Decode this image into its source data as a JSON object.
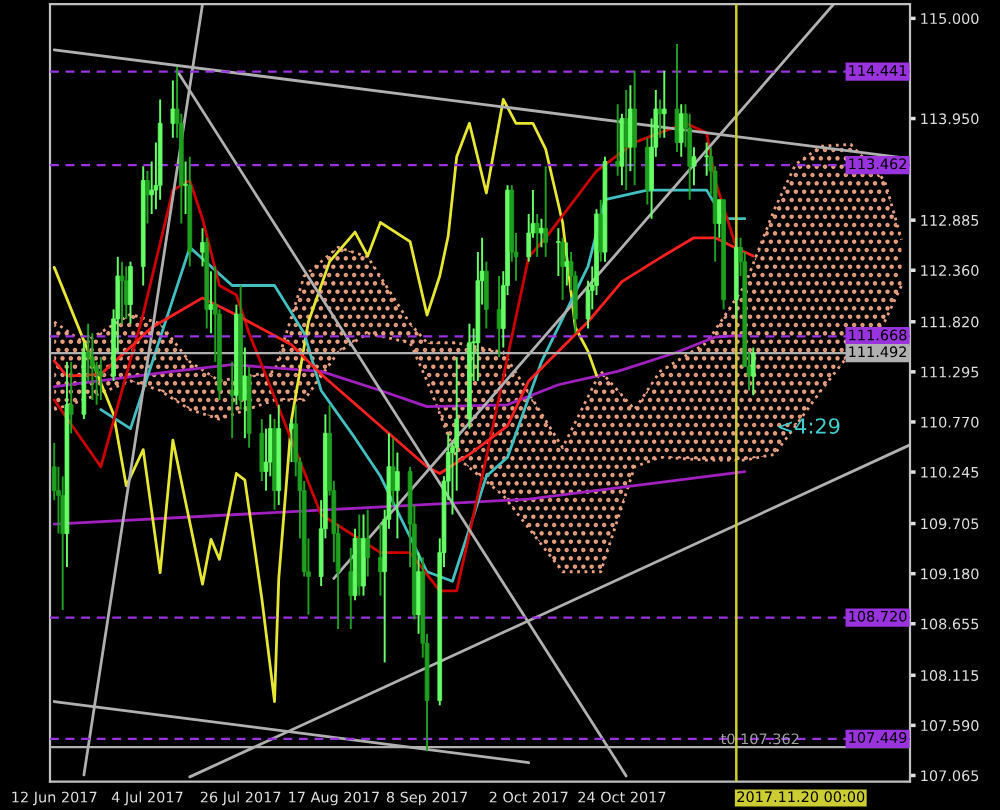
{
  "chart_data": {
    "type": "candlestick",
    "colors": [
      "#1f9f1f",
      "#1f9f1f",
      "#1f9f1f",
      "#66ff66",
      "#1f9f1f",
      "#66ff66",
      "#1f9f1f",
      "#1f9f1f",
      "#1f9f1f",
      "#1f9f1f",
      "#66ff66",
      "#66ff66",
      "#1f9f1f",
      "#1f9f1f",
      "#66ff66",
      "#66ff66",
      "#1f9f1f",
      "#66ff66",
      "#66ff66",
      "#66ff66",
      "#66ff66",
      "#1f9f1f",
      "#1f9f1f",
      "#66ff66",
      "#1f9f1f",
      "#66ff66",
      "#1f9f1f",
      "#66ff66",
      "#1f9f1f",
      "#1f9f1f",
      "#1f9f1f",
      "#66ff66",
      "#1f9f1f",
      "#66ff66",
      "#1f9f1f",
      "#1f9f1f",
      "#66ff66",
      "#66ff66",
      "#1f9f1f",
      "#66ff66",
      "#66ff66",
      "#1f9f1f",
      "#1f9f1f",
      "#1f9f1f",
      "#1f9f1f",
      "#66ff66",
      "#66ff66",
      "#1f9f1f",
      "#1f9f1f",
      "#1f9f1f",
      "#1f9f1f",
      "#66ff66",
      "#1f9f1f",
      "#66ff66",
      "#1f9f1f",
      "#1f9f1f",
      "#66ff66",
      "#66ff66",
      "#1f9f1f",
      "#66ff66",
      "#1f9f1f",
      "#1f9f1f",
      "#66ff66",
      "#1f9f1f",
      "#1f9f1f",
      "#66ff66",
      "#66ff66",
      "#66ff66",
      "#66ff66",
      "#66ff66",
      "#66ff66",
      "#66ff66",
      "#66ff66",
      "#66ff66",
      "#1f9f1f",
      "#1f9f1f",
      "#66ff66",
      "#66ff66",
      "#1f9f1f",
      "#1f9f1f",
      "#66ff66",
      "#66ff66",
      "#1f9f1f",
      "#66ff66",
      "#1f9f1f",
      "#66ff66",
      "#1f9f1f",
      "#66ff66",
      "#1f9f1f",
      "#1f9f1f",
      "#66ff66",
      "#66ff66",
      "#66ff66",
      "#1f9f1f",
      "#66ff66",
      "#1f9f1f",
      "#66ff66",
      "#1f9f1f",
      "#66ff66",
      "#1f9f1f",
      "#1f9f1f",
      "#66ff66",
      "#66ff66",
      "#1f9f1f",
      "#66ff66",
      "#1f9f1f",
      "#66ff66",
      "#1f9f1f",
      "#1f9f1f",
      "#66ff66",
      "#66ff66",
      "#1f9f1f",
      "#1f9f1f",
      "#66ff66",
      "#1f9f1f",
      "#66ff66",
      "#1f9f1f",
      "#1f9f1f",
      "#1f9f1f",
      "#66ff66"
    ],
    "x": [
      "2017-06-12",
      "2017-06-13",
      "2017-06-14",
      "2017-06-15",
      "2017-06-16",
      "2017-06-19",
      "2017-06-20",
      "2017-06-21",
      "2017-06-22",
      "2017-06-23",
      "2017-06-26",
      "2017-06-27",
      "2017-06-28",
      "2017-06-29",
      "2017-06-30",
      "2017-07-03",
      "2017-07-04",
      "2017-07-05",
      "2017-07-06",
      "2017-07-07",
      "2017-07-10",
      "2017-07-11",
      "2017-07-12",
      "2017-07-13",
      "2017-07-14",
      "2017-07-17",
      "2017-07-18",
      "2017-07-19",
      "2017-07-20",
      "2017-07-21",
      "2017-07-24",
      "2017-07-25",
      "2017-07-26",
      "2017-07-27",
      "2017-07-28",
      "2017-07-31",
      "2017-08-01",
      "2017-08-02",
      "2017-08-03",
      "2017-08-04",
      "2017-08-07",
      "2017-08-08",
      "2017-08-09",
      "2017-08-10",
      "2017-08-11",
      "2017-08-14",
      "2017-08-15",
      "2017-08-16",
      "2017-08-17",
      "2017-08-18",
      "2017-08-21",
      "2017-08-22",
      "2017-08-23",
      "2017-08-24",
      "2017-08-25",
      "2017-08-28",
      "2017-08-29",
      "2017-08-30",
      "2017-08-31",
      "2017-09-01",
      "2017-09-04",
      "2017-09-05",
      "2017-09-06",
      "2017-09-07",
      "2017-09-08",
      "2017-09-11",
      "2017-09-12",
      "2017-09-13",
      "2017-09-14",
      "2017-09-15",
      "2017-09-18",
      "2017-09-19",
      "2017-09-20",
      "2017-09-21",
      "2017-09-22",
      "2017-09-25",
      "2017-09-26",
      "2017-09-27",
      "2017-09-28",
      "2017-09-29",
      "2017-10-02",
      "2017-10-03",
      "2017-10-04",
      "2017-10-05",
      "2017-10-06",
      "2017-10-09",
      "2017-10-10",
      "2017-10-11",
      "2017-10-12",
      "2017-10-13",
      "2017-10-16",
      "2017-10-17",
      "2017-10-18",
      "2017-10-19",
      "2017-10-20",
      "2017-10-23",
      "2017-10-24",
      "2017-10-25",
      "2017-10-26",
      "2017-10-27",
      "2017-10-30",
      "2017-10-31",
      "2017-11-01",
      "2017-11-02",
      "2017-11-03",
      "2017-11-06",
      "2017-11-07",
      "2017-11-08",
      "2017-11-09",
      "2017-11-10",
      "2017-11-13",
      "2017-11-14",
      "2017-11-15",
      "2017-11-16",
      "2017-11-17",
      "2017-11-20",
      "2017-11-21",
      "2017-11-22",
      "2017-11-23",
      "2017-11-24"
    ],
    "ohlc": [
      [
        110.3,
        110.55,
        109.95,
        110.05
      ],
      [
        110.05,
        110.3,
        109.6,
        110.0
      ],
      [
        110.0,
        110.2,
        108.8,
        109.6
      ],
      [
        109.6,
        111.4,
        109.25,
        110.95
      ],
      [
        110.95,
        111.4,
        110.65,
        110.85
      ],
      [
        110.85,
        111.6,
        110.8,
        111.5
      ],
      [
        111.5,
        111.8,
        111.2,
        111.45
      ],
      [
        111.45,
        111.7,
        111.0,
        111.35
      ],
      [
        111.35,
        111.4,
        110.95,
        111.3
      ],
      [
        111.3,
        111.45,
        111.0,
        111.25
      ],
      [
        111.25,
        111.95,
        111.2,
        111.85
      ],
      [
        111.85,
        112.5,
        111.5,
        112.3
      ],
      [
        112.3,
        112.45,
        111.8,
        112.25
      ],
      [
        112.25,
        112.4,
        111.85,
        112.0
      ],
      [
        112.0,
        112.45,
        111.8,
        112.4
      ],
      [
        112.4,
        113.45,
        112.2,
        113.3
      ],
      [
        113.3,
        113.4,
        112.85,
        113.15
      ],
      [
        113.15,
        113.5,
        112.95,
        113.2
      ],
      [
        113.2,
        113.7,
        113.0,
        113.25
      ],
      [
        113.25,
        114.15,
        113.1,
        113.9
      ],
      [
        113.9,
        114.35,
        113.75,
        114.05
      ],
      [
        114.05,
        114.49,
        113.75,
        113.9
      ],
      [
        113.9,
        114.0,
        112.85,
        113.25
      ],
      [
        113.25,
        113.5,
        112.95,
        113.25
      ],
      [
        113.25,
        113.55,
        112.4,
        112.55
      ],
      [
        112.55,
        112.8,
        112.4,
        112.65
      ],
      [
        112.65,
        112.7,
        111.75,
        111.95
      ],
      [
        111.95,
        112.35,
        111.7,
        112.0
      ],
      [
        112.0,
        112.4,
        111.4,
        111.9
      ],
      [
        111.9,
        111.95,
        111.0,
        111.1
      ],
      [
        111.1,
        111.4,
        110.6,
        111.05
      ],
      [
        111.05,
        112.0,
        110.95,
        111.9
      ],
      [
        111.9,
        112.2,
        110.9,
        111.0
      ],
      [
        111.0,
        111.55,
        110.6,
        111.25
      ],
      [
        111.25,
        111.35,
        110.5,
        110.65
      ],
      [
        110.65,
        110.8,
        110.15,
        110.25
      ],
      [
        110.25,
        110.7,
        110.05,
        110.35
      ],
      [
        110.35,
        110.85,
        110.2,
        110.7
      ],
      [
        110.7,
        110.8,
        109.85,
        110.05
      ],
      [
        110.05,
        110.95,
        109.9,
        110.7
      ],
      [
        110.7,
        110.8,
        110.35,
        110.75
      ],
      [
        110.75,
        110.95,
        110.2,
        110.35
      ],
      [
        110.35,
        110.4,
        109.55,
        110.05
      ],
      [
        110.05,
        110.15,
        109.15,
        109.2
      ],
      [
        109.2,
        109.55,
        108.75,
        109.15
      ],
      [
        109.15,
        109.95,
        109.05,
        109.65
      ],
      [
        109.65,
        110.85,
        109.55,
        110.65
      ],
      [
        110.65,
        110.95,
        110.0,
        110.05
      ],
      [
        110.05,
        110.15,
        109.3,
        109.6
      ],
      [
        109.6,
        109.7,
        108.6,
        109.2
      ],
      [
        109.2,
        109.45,
        108.6,
        108.95
      ],
      [
        108.95,
        109.65,
        108.9,
        109.55
      ],
      [
        109.55,
        109.8,
        108.95,
        109.05
      ],
      [
        109.05,
        109.8,
        108.95,
        109.55
      ],
      [
        109.55,
        109.85,
        109.15,
        109.35
      ],
      [
        109.35,
        109.7,
        108.95,
        109.2
      ],
      [
        109.2,
        109.85,
        108.25,
        109.75
      ],
      [
        109.75,
        110.65,
        109.65,
        110.3
      ],
      [
        110.3,
        110.6,
        109.9,
        110.05
      ],
      [
        110.05,
        110.45,
        109.55,
        110.25
      ],
      [
        110.25,
        110.3,
        109.25,
        109.7
      ],
      [
        109.7,
        109.9,
        108.7,
        108.75
      ],
      [
        108.75,
        109.4,
        108.55,
        109.2
      ],
      [
        109.2,
        109.35,
        108.3,
        108.45
      ],
      [
        108.45,
        108.55,
        107.32,
        107.85
      ],
      [
        107.85,
        109.55,
        107.8,
        109.4
      ],
      [
        109.4,
        110.2,
        109.25,
        110.15
      ],
      [
        110.15,
        110.65,
        109.95,
        110.45
      ],
      [
        110.45,
        110.55,
        109.8,
        110.5
      ],
      [
        110.5,
        111.45,
        110.05,
        110.8
      ],
      [
        110.8,
        111.8,
        110.7,
        111.6
      ],
      [
        111.6,
        111.75,
        111.2,
        111.6
      ],
      [
        111.6,
        112.55,
        111.2,
        112.25
      ],
      [
        112.25,
        112.7,
        112.0,
        112.35
      ],
      [
        112.35,
        112.45,
        111.75,
        111.95
      ],
      [
        111.95,
        112.3,
        111.45,
        111.75
      ],
      [
        111.75,
        112.35,
        111.55,
        112.2
      ],
      [
        112.2,
        113.25,
        112.1,
        113.2
      ],
      [
        113.2,
        113.25,
        112.45,
        112.55
      ],
      [
        112.55,
        112.75,
        112.25,
        112.5
      ],
      [
        112.5,
        112.95,
        112.45,
        112.75
      ],
      [
        112.75,
        113.2,
        112.7,
        112.85
      ],
      [
        112.85,
        112.95,
        112.5,
        112.75
      ],
      [
        112.75,
        112.9,
        112.6,
        112.8
      ],
      [
        112.8,
        113.45,
        112.5,
        112.65
      ],
      [
        112.65,
        112.8,
        112.3,
        112.65
      ],
      [
        112.65,
        112.7,
        112.05,
        112.4
      ],
      [
        112.4,
        112.65,
        112.2,
        112.45
      ],
      [
        112.45,
        112.55,
        112.15,
        112.3
      ],
      [
        112.3,
        112.35,
        111.7,
        111.85
      ],
      [
        111.85,
        112.25,
        111.75,
        112.15
      ],
      [
        112.15,
        112.4,
        111.95,
        112.2
      ],
      [
        112.2,
        113.0,
        112.1,
        112.95
      ],
      [
        112.95,
        113.1,
        112.45,
        112.55
      ],
      [
        112.55,
        113.55,
        112.45,
        113.5
      ],
      [
        113.5,
        114.1,
        113.35,
        113.45
      ],
      [
        113.45,
        114.0,
        113.25,
        113.95
      ],
      [
        113.95,
        114.25,
        113.2,
        113.65
      ],
      [
        113.65,
        114.3,
        113.4,
        114.05
      ],
      [
        114.05,
        114.45,
        113.25,
        113.65
      ],
      [
        113.65,
        113.75,
        113.05,
        113.2
      ],
      [
        113.2,
        113.95,
        112.9,
        113.65
      ],
      [
        113.65,
        114.25,
        113.55,
        114.05
      ],
      [
        114.05,
        114.15,
        113.75,
        114.0
      ],
      [
        114.0,
        114.45,
        113.75,
        114.05
      ],
      [
        114.05,
        114.73,
        113.6,
        113.7
      ],
      [
        113.7,
        114.1,
        113.55,
        114.0
      ],
      [
        114.0,
        114.1,
        113.65,
        113.85
      ],
      [
        113.85,
        114.0,
        113.1,
        113.45
      ],
      [
        113.45,
        113.65,
        113.25,
        113.55
      ],
      [
        113.55,
        113.7,
        113.35,
        113.55
      ],
      [
        113.55,
        113.65,
        113.15,
        113.4
      ],
      [
        113.4,
        113.45,
        112.45,
        112.85
      ],
      [
        112.85,
        113.1,
        112.7,
        113.1
      ],
      [
        113.1,
        113.1,
        111.95,
        112.05
      ],
      [
        112.05,
        112.7,
        111.85,
        112.6
      ],
      [
        112.6,
        112.7,
        112.3,
        112.45
      ],
      [
        112.45,
        112.55,
        111.35,
        111.35
      ],
      [
        111.35,
        111.5,
        111.1,
        111.25
      ],
      [
        111.25,
        111.55,
        111.05,
        111.49
      ]
    ],
    "series": [
      {
        "type": "line",
        "color": "#e8a080",
        "line_style": "dotted",
        "x": [
          "2017-06-12",
          "2017-06-19",
          "2017-06-30",
          "2017-07-07",
          "2017-07-14",
          "2017-07-21",
          "2017-08-03",
          "2017-08-10",
          "2017-08-18",
          "2017-08-25",
          "2017-09-04",
          "2017-09-08",
          "2017-09-15",
          "2017-09-26",
          "2017-10-10",
          "2017-10-19",
          "2017-10-27",
          "2017-11-02",
          "2017-11-13",
          "2017-11-22",
          "2017-11-29",
          "2017-12-04",
          "2017-12-10",
          "2017-12-17",
          "2017-12-25",
          "2017-12-29"
        ],
        "values": [
          111.82,
          111.6,
          111.9,
          111.8,
          111.4,
          111.2,
          111.3,
          112.3,
          112.6,
          112.5,
          111.8,
          111.6,
          111.6,
          111.5,
          110.5,
          111.3,
          110.9,
          111.3,
          111.6,
          112.2,
          113.0,
          113.47,
          113.66,
          113.68,
          113.3,
          112.68
        ]
      },
      {
        "type": "line",
        "color": "#e8a080",
        "line_style": "dotted",
        "x": [
          "2017-06-12",
          "2017-06-19",
          "2017-06-30",
          "2017-07-07",
          "2017-07-14",
          "2017-07-21",
          "2017-08-03",
          "2017-08-10",
          "2017-08-18",
          "2017-08-25",
          "2017-09-04",
          "2017-09-08",
          "2017-09-15",
          "2017-09-26",
          "2017-10-10",
          "2017-10-19",
          "2017-10-27",
          "2017-11-02",
          "2017-11-13",
          "2017-11-22",
          "2017-11-29",
          "2017-12-04",
          "2017-12-10",
          "2017-12-17",
          "2017-12-25",
          "2017-12-29"
        ],
        "values": [
          110.9,
          111.0,
          111.2,
          111.1,
          110.9,
          110.8,
          111.0,
          111.0,
          111.5,
          111.7,
          111.6,
          111.2,
          110.4,
          110.0,
          109.2,
          109.2,
          110.3,
          110.4,
          110.37,
          110.37,
          110.43,
          110.73,
          111.1,
          111.5,
          111.82,
          112.2
        ]
      },
      {
        "type": "line",
        "color": "#a020c0",
        "x": [
          "2017-06-12",
          "2017-07-10",
          "2017-07-24",
          "2017-08-14",
          "2017-08-28",
          "2017-09-08",
          "2017-09-27",
          "2017-10-09",
          "2017-10-23",
          "2017-11-06",
          "2017-11-15",
          "2017-11-22"
        ],
        "values": [
          111.14,
          111.3,
          111.37,
          111.3,
          111.1,
          110.93,
          110.95,
          111.16,
          111.3,
          111.5,
          111.66,
          111.68
        ]
      },
      {
        "type": "line",
        "color": "#a020c0",
        "x": [
          "2017-06-12",
          "2017-10-02",
          "2017-11-22"
        ],
        "values": [
          109.7,
          109.96,
          110.25
        ]
      },
      {
        "type": "line",
        "color": "#e6e633",
        "x": [
          "2017-06-12",
          "2017-06-26",
          "2017-06-29",
          "2017-07-03",
          "2017-07-07",
          "2017-07-10",
          "2017-07-17",
          "2017-07-19",
          "2017-07-21",
          "2017-07-25",
          "2017-07-27",
          "2017-07-31",
          "2017-08-03",
          "2017-08-04",
          "2017-08-07",
          "2017-08-11",
          "2017-08-16",
          "2017-08-22",
          "2017-08-25",
          "2017-08-28",
          "2017-09-04",
          "2017-09-08",
          "2017-09-11",
          "2017-09-13",
          "2017-09-15",
          "2017-09-18",
          "2017-09-22",
          "2017-09-26",
          "2017-09-29",
          "2017-10-03",
          "2017-10-06",
          "2017-10-10",
          "2017-10-13",
          "2017-10-16",
          "2017-10-18"
        ],
        "values": [
          112.39,
          110.85,
          110.1,
          110.48,
          109.19,
          110.58,
          109.07,
          109.54,
          109.33,
          110.23,
          110.16,
          108.92,
          107.84,
          109.13,
          110.79,
          111.82,
          112.45,
          112.76,
          112.51,
          112.86,
          112.66,
          111.89,
          112.3,
          112.72,
          113.55,
          113.9,
          113.17,
          114.15,
          113.9,
          113.9,
          113.63,
          112.86,
          111.76,
          111.51,
          111.26
        ]
      },
      {
        "type": "line",
        "color": "#40c0c0",
        "x": [
          "2017-06-23",
          "2017-06-30",
          "2017-07-14",
          "2017-07-24",
          "2017-08-03",
          "2017-08-10",
          "2017-08-14",
          "2017-08-22",
          "2017-08-28",
          "2017-09-08",
          "2017-09-14",
          "2017-09-22",
          "2017-09-27",
          "2017-10-05",
          "2017-10-16",
          "2017-10-20",
          "2017-10-30",
          "2017-11-13",
          "2017-11-17",
          "2017-11-22"
        ],
        "values": [
          110.9,
          110.7,
          112.6,
          112.2,
          112.2,
          111.7,
          111.1,
          110.6,
          110.2,
          109.2,
          109.1,
          110.2,
          110.4,
          111.4,
          112.4,
          113.1,
          113.2,
          113.2,
          112.9,
          112.9
        ]
      },
      {
        "type": "line",
        "color": "#cc0000",
        "x": [
          "2017-06-12",
          "2017-06-23",
          "2017-07-03",
          "2017-07-10",
          "2017-07-14",
          "2017-07-17",
          "2017-07-21",
          "2017-07-25",
          "2017-07-28",
          "2017-08-14",
          "2017-08-28",
          "2017-09-04",
          "2017-09-11",
          "2017-09-15",
          "2017-09-18",
          "2017-09-22",
          "2017-10-02",
          "2017-10-06",
          "2017-10-18",
          "2017-10-27",
          "2017-11-08",
          "2017-11-13",
          "2017-11-15",
          "2017-11-20"
        ],
        "values": [
          111.0,
          110.3,
          111.9,
          113.2,
          113.3,
          112.9,
          112.2,
          112.1,
          111.7,
          109.8,
          109.4,
          109.4,
          109.0,
          109.0,
          109.6,
          110.4,
          112.5,
          112.7,
          113.4,
          113.7,
          113.9,
          113.8,
          113.3,
          112.6
        ]
      },
      {
        "type": "line",
        "color": "#ff2020",
        "x": [
          "2017-06-12",
          "2017-06-15",
          "2017-06-23",
          "2017-07-05",
          "2017-07-17",
          "2017-07-25",
          "2017-08-07",
          "2017-08-14",
          "2017-09-08",
          "2017-09-11",
          "2017-09-18",
          "2017-09-27",
          "2017-10-02",
          "2017-10-16",
          "2017-10-24",
          "2017-11-02",
          "2017-11-10",
          "2017-11-15",
          "2017-11-20",
          "2017-11-24"
        ],
        "values": [
          111.41,
          111.25,
          111.27,
          111.76,
          112.07,
          111.89,
          111.58,
          111.27,
          110.3,
          110.23,
          110.43,
          110.73,
          111.2,
          111.82,
          112.24,
          112.49,
          112.7,
          112.7,
          112.59,
          112.51
        ]
      },
      {
        "type": "line",
        "color": "#b0b0b0",
        "x": [
          "2017-06-12",
          "2017-12-31"
        ],
        "values": [
          114.67,
          113.53
        ]
      },
      {
        "type": "line",
        "color": "#b0b0b0",
        "x": [
          "2017-07-14",
          "2017-12-31"
        ],
        "values": [
          107.05,
          110.53
        ]
      },
      {
        "type": "line",
        "color": "#b0b0b0",
        "x": [
          "2017-07-11",
          "2017-10-25"
        ],
        "values": [
          114.45,
          107.06
        ]
      },
      {
        "type": "line",
        "color": "#b0b0b0",
        "x": [
          "2017-06-19",
          "2017-07-17"
        ],
        "values": [
          107.07,
          115.15
        ]
      },
      {
        "type": "line",
        "color": "#b0b0b0",
        "x": [
          "2017-08-17",
          "2017-12-13"
        ],
        "values": [
          109.13,
          115.15
        ]
      },
      {
        "type": "line",
        "color": "#b0b0b0",
        "x": [
          "2017-06-12",
          "2017-10-02"
        ],
        "values": [
          107.84,
          107.2
        ]
      }
    ],
    "xlim": [
      "2017-06-11",
      "2017-12-31"
    ],
    "xticks": [
      {
        "value": "2017-06-12",
        "label": "12 Jun 2017"
      },
      {
        "value": "2017-07-04",
        "label": "4 Jul 2017"
      },
      {
        "value": "2017-07-26",
        "label": "26 Jul 2017"
      },
      {
        "value": "2017-08-17",
        "label": "17 Aug 2017"
      },
      {
        "value": "2017-09-08",
        "label": "8 Sep 2017"
      },
      {
        "value": "2017-10-02",
        "label": "2 Oct 2017"
      },
      {
        "value": "2017-10-24",
        "label": "24 Oct 2017"
      }
    ],
    "ylim": [
      107.0,
      115.15
    ],
    "yticks": [
      {
        "value": 115.0,
        "label": "115.000"
      },
      {
        "value": 113.95,
        "label": "113.950"
      },
      {
        "value": 112.885,
        "label": "112.885"
      },
      {
        "value": 112.36,
        "label": "112.360"
      },
      {
        "value": 111.82,
        "label": "111.820"
      },
      {
        "value": 111.295,
        "label": "111.295"
      },
      {
        "value": 110.77,
        "label": "110.770"
      },
      {
        "value": 110.245,
        "label": "110.245"
      },
      {
        "value": 109.705,
        "label": "109.705"
      },
      {
        "value": 109.18,
        "label": "109.180"
      },
      {
        "value": 108.655,
        "label": "108.655"
      },
      {
        "value": 108.115,
        "label": "108.115"
      },
      {
        "value": 107.59,
        "label": "107.590"
      },
      {
        "value": 107.065,
        "label": "107.065"
      }
    ],
    "ref_lines": [
      {
        "axis": "y",
        "value": 114.441,
        "label": "114.441",
        "color": "#9933dd",
        "line_style": "dashed"
      },
      {
        "axis": "y",
        "value": 113.462,
        "label": "113.462",
        "color": "#9933dd",
        "line_style": "dashed"
      },
      {
        "axis": "y",
        "value": 111.668,
        "label": "111.668",
        "color": "#9933dd",
        "line_style": "dashed"
      },
      {
        "axis": "y",
        "value": 111.492,
        "label": "111.492",
        "color": "#b0b0b0",
        "line_style": "solid"
      },
      {
        "axis": "y",
        "value": 108.72,
        "label": "108.720",
        "color": "#9933dd",
        "line_style": "dashed"
      },
      {
        "axis": "y",
        "value": 107.449,
        "label": "107.449",
        "color": "#9933dd",
        "line_style": "dashed"
      },
      {
        "axis": "y",
        "value": 107.362,
        "color": "#b0b0b0",
        "line_style": "solid"
      },
      {
        "axis": "x",
        "value": "2017-11-20",
        "label": "2017.11.20 00:00",
        "color": "#cccc33",
        "line_style": "solid"
      }
    ],
    "annotations": [
      {
        "text": "t0 107.362",
        "x": "2017-12-05",
        "y": 107.362
      },
      "<4:29"
    ],
    "grid": false,
    "legend": false
  }
}
